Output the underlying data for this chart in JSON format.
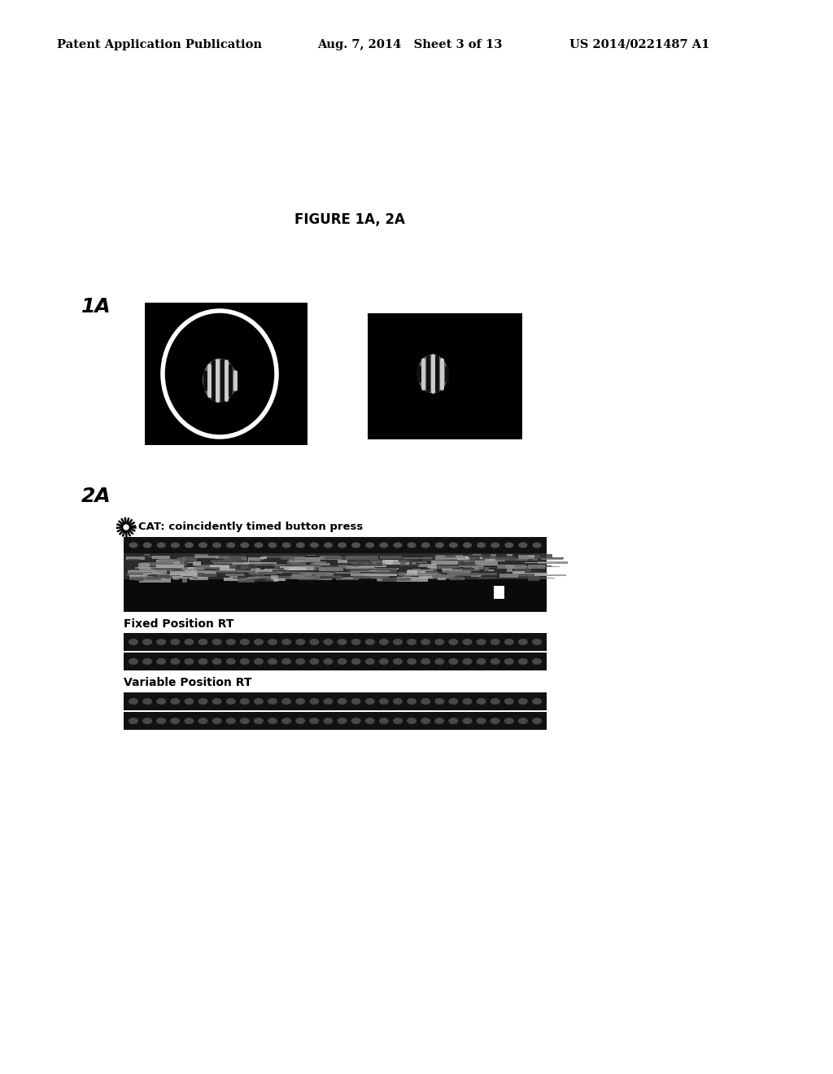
{
  "header_left": "Patent Application Publication",
  "header_center": "Aug. 7, 2014   Sheet 3 of 13",
  "header_right": "US 2014/0221487 A1",
  "figure_title": "FIGURE 1A, 2A",
  "label_1a": "1A",
  "label_2a": "2A",
  "cat_label": "CAT: coincidently timed button press",
  "fixed_rt_label": "Fixed Position RT",
  "variable_rt_label": "Variable Position RT",
  "bg_color": "#ffffff",
  "black": "#000000",
  "white": "#ffffff"
}
